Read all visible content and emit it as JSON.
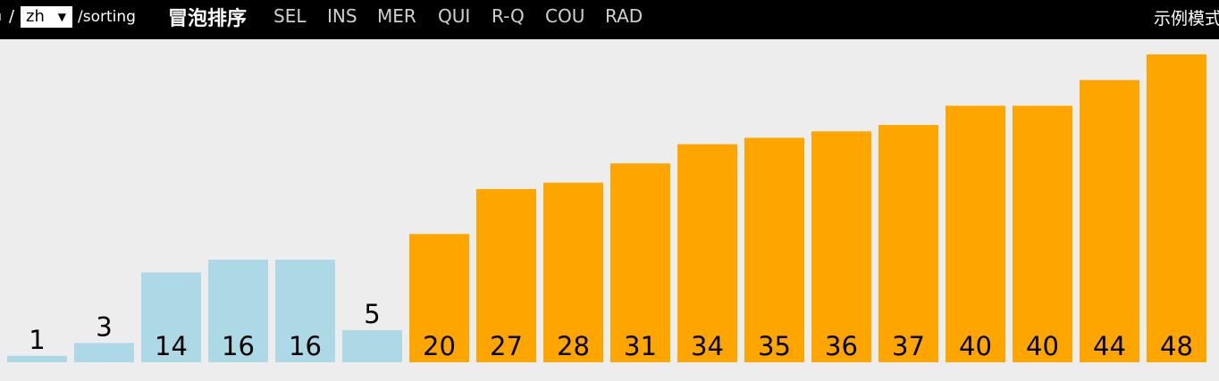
{
  "nav": {
    "crumb_prefix": "ı",
    "slash": "/",
    "language": "zh",
    "path": "/sorting",
    "title": "冒泡排序",
    "tabs": [
      "SEL",
      "INS",
      "MER",
      "QUI",
      "R-Q",
      "COU",
      "RAD"
    ],
    "mode": "示例模式"
  },
  "colors": {
    "background": "#ededed",
    "unsorted": "#add8e6",
    "sorted": "#ffa500"
  },
  "chart_data": {
    "type": "bar",
    "values": [
      1,
      3,
      14,
      16,
      16,
      5,
      20,
      27,
      28,
      31,
      34,
      35,
      36,
      37,
      40,
      40,
      44,
      48
    ],
    "status": [
      "unsorted",
      "unsorted",
      "unsorted",
      "unsorted",
      "unsorted",
      "unsorted",
      "sorted",
      "sorted",
      "sorted",
      "sorted",
      "sorted",
      "sorted",
      "sorted",
      "sorted",
      "sorted",
      "sorted",
      "sorted",
      "sorted"
    ],
    "ylim": [
      0,
      48
    ]
  }
}
